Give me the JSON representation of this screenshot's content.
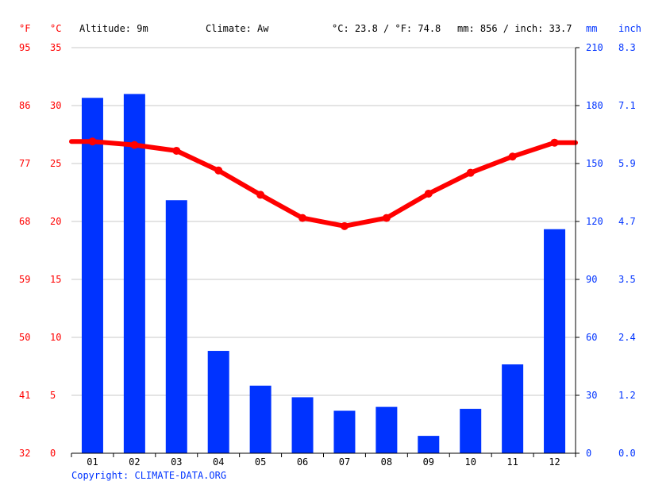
{
  "header": {
    "altitude": "Altitude: 9m",
    "climate": "Climate: Aw",
    "avg_temp": "°C: 23.8 / °F: 74.8",
    "precip": "mm: 856 / inch: 33.7"
  },
  "axis_units": {
    "f": "°F",
    "c": "°C",
    "mm": "mm",
    "inch": "inch"
  },
  "copyright": "Copyright: CLIMATE-DATA.ORG",
  "colors": {
    "temperature": "#ff0000",
    "precipitation": "#0033ff",
    "grid": "#c8c8c8",
    "text": "#000000"
  },
  "chart_data": {
    "type": "bar",
    "categories": [
      "01",
      "02",
      "03",
      "04",
      "05",
      "06",
      "07",
      "08",
      "09",
      "10",
      "11",
      "12"
    ],
    "series": [
      {
        "type": "bar",
        "axis": "right",
        "unit": "mm",
        "values": [
          184,
          186,
          131,
          53,
          35,
          29,
          22,
          24,
          9,
          23,
          46,
          116
        ]
      },
      {
        "type": "line",
        "axis": "left",
        "unit": "°C",
        "values": [
          26.9,
          26.6,
          26.1,
          24.4,
          22.3,
          20.3,
          19.6,
          20.3,
          22.4,
          24.2,
          25.6,
          26.8
        ]
      }
    ],
    "y_left": {
      "unit": "°C",
      "lim": [
        0,
        35
      ],
      "ticks": [
        "0",
        "5",
        "10",
        "15",
        "20",
        "25",
        "30",
        "35"
      ]
    },
    "y_left_f": {
      "unit": "°F",
      "ticks": [
        "32",
        "41",
        "50",
        "59",
        "68",
        "77",
        "86",
        "95"
      ]
    },
    "y_right": {
      "unit": "mm",
      "lim": [
        0,
        210
      ],
      "ticks": [
        "0",
        "30",
        "60",
        "90",
        "120",
        "150",
        "180",
        "210"
      ]
    },
    "y_right_inch": {
      "unit": "inch",
      "ticks": [
        "0.0",
        "1.2",
        "2.4",
        "3.5",
        "4.7",
        "5.9",
        "7.1",
        "8.3"
      ]
    },
    "grid": true
  }
}
